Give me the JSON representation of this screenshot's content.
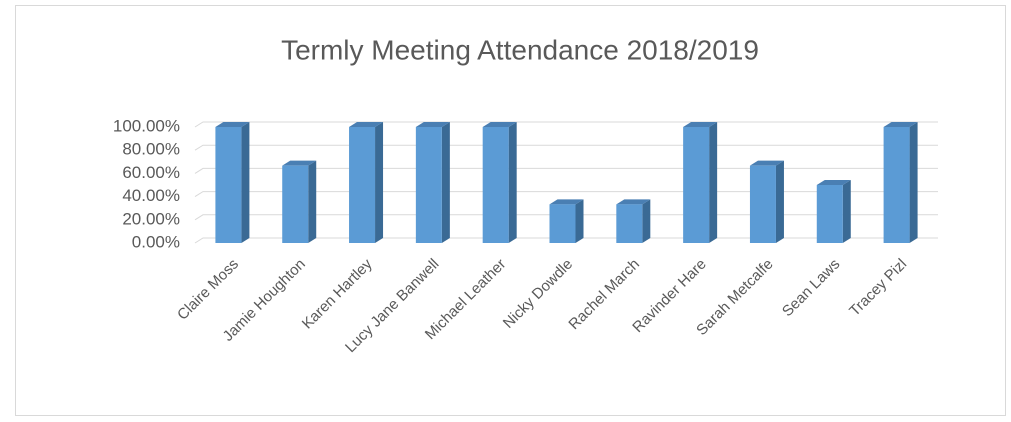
{
  "chart_data": {
    "type": "bar3d",
    "title": "Termly Meeting Attendance 2018/2019",
    "categories": [
      "Claire Moss",
      "Jamie Houghton",
      "Karen Hartley",
      "Lucy Jane Banwell",
      "Michael Leather",
      "Nicky Dowdle",
      "Rachel March",
      "Ravinder Hare",
      "Sarah Metcalfe",
      "Sean Laws",
      "Tracey Pizl"
    ],
    "values": [
      100,
      66.67,
      100,
      100,
      100,
      33.33,
      33.33,
      100,
      66.67,
      50,
      100
    ],
    "color": "#5b9bd5",
    "ylim": [
      0,
      100
    ],
    "yticks": [
      {
        "value": 0,
        "label": "0.00%"
      },
      {
        "value": 20,
        "label": "20.00%"
      },
      {
        "value": 40,
        "label": "40.00%"
      },
      {
        "value": 60,
        "label": "60.00%"
      },
      {
        "value": 80,
        "label": "80.00%"
      },
      {
        "value": 100,
        "label": "100.00%"
      }
    ],
    "grid": true
  }
}
